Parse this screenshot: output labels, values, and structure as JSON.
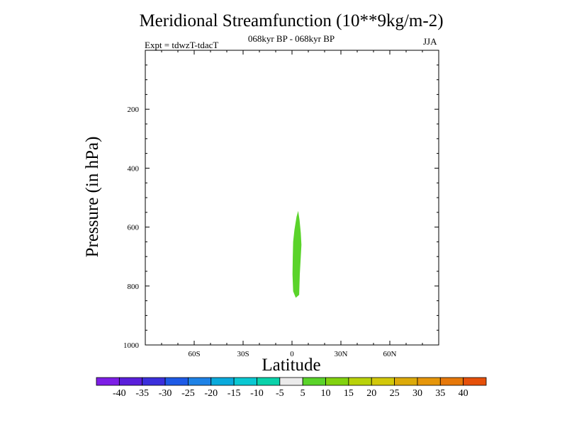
{
  "chart_data": {
    "type": "contour",
    "title": "Meridional Streamfunction (10**9kg/m-2)",
    "subtitle": "068kyr BP - 068kyr BP",
    "expt_label": "Expt = tdwzT-tdacT",
    "season": "JJA",
    "xlabel": "Latitude",
    "ylabel": "Pressure (in hPa)",
    "xlim": [
      -90,
      90
    ],
    "ylim": [
      1000,
      0
    ],
    "x_ticks": [
      {
        "value": -60,
        "label": "60S"
      },
      {
        "value": -30,
        "label": "30S"
      },
      {
        "value": 0,
        "label": "0"
      },
      {
        "value": 30,
        "label": "30N"
      },
      {
        "value": 60,
        "label": "60N"
      }
    ],
    "y_ticks": [
      {
        "value": 200,
        "label": "200"
      },
      {
        "value": 400,
        "label": "400"
      },
      {
        "value": 600,
        "label": "600"
      },
      {
        "value": 800,
        "label": "800"
      },
      {
        "value": 1000,
        "label": "1000"
      }
    ],
    "filled_region": {
      "level_range": "5 to 10",
      "color": "#5ad32a",
      "outline": [
        [
          3.8,
          545
        ],
        [
          4.6,
          575
        ],
        [
          5.4,
          620
        ],
        [
          5.8,
          660
        ],
        [
          5.4,
          700
        ],
        [
          4.8,
          760
        ],
        [
          4.4,
          830
        ],
        [
          2.3,
          840
        ],
        [
          0.7,
          818
        ],
        [
          0.3,
          760
        ],
        [
          0.5,
          700
        ],
        [
          0.7,
          650
        ],
        [
          1.5,
          610
        ],
        [
          2.8,
          565
        ]
      ]
    },
    "colorbar": {
      "labels": [
        "-40",
        "-35",
        "-30",
        "-25",
        "-20",
        "-15",
        "-10",
        "-5",
        "5",
        "10",
        "15",
        "20",
        "25",
        "30",
        "35",
        "40"
      ],
      "colors": [
        "#7d1ee6",
        "#5a1fdb",
        "#3b2fdc",
        "#1e5ae6",
        "#1e82e6",
        "#0aaadc",
        "#0ac8d2",
        "#0ad2aa",
        "#ebebeb",
        "#5ad32a",
        "#82d20f",
        "#b9d20a",
        "#d2c80a",
        "#dcaa0a",
        "#e6960a",
        "#e6780a",
        "#e6500a"
      ]
    }
  }
}
